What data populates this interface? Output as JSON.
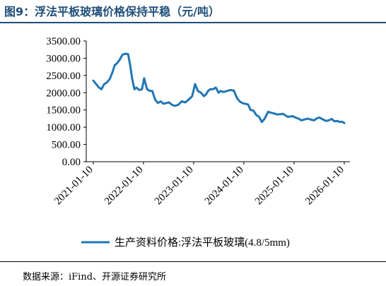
{
  "title": "图9：浮法平板玻璃价格保持平稳（元/吨）",
  "source": "数据来源：iFind、开源证券研究所",
  "colors": {
    "line": "#1f77b4",
    "title": "#1f4e79"
  },
  "chart_data": {
    "type": "line",
    "title": "图9：浮法平板玻璃价格保持平稳（元/吨）",
    "xlabel": "",
    "ylabel": "",
    "ylim": [
      0,
      3500
    ],
    "yticks": [
      "0.00",
      "500.00",
      "1000.00",
      "1500.00",
      "2000.00",
      "2500.00",
      "3000.00",
      "3500.00"
    ],
    "xticks": [
      "2021-01-10",
      "2022-01-10",
      "2023-01-10",
      "2024-01-10",
      "2025-01-10",
      "2026-01-10"
    ],
    "grid": false,
    "legend_position": "bottom",
    "series": [
      {
        "name": "生产资料价格:浮法平板玻璃(4.8/5mm)",
        "x": [
          "2021-01-10",
          "2021-02-20",
          "2021-03-10",
          "2021-03-30",
          "2021-04-20",
          "2021-05-10",
          "2021-05-30",
          "2021-06-15",
          "2021-07-01",
          "2021-07-20",
          "2021-08-10",
          "2021-08-30",
          "2021-09-20",
          "2021-10-05",
          "2021-10-20",
          "2021-11-05",
          "2021-11-20",
          "2021-12-10",
          "2021-12-30",
          "2022-01-15",
          "2022-02-05",
          "2022-02-25",
          "2022-03-15",
          "2022-04-05",
          "2022-04-25",
          "2022-05-15",
          "2022-06-05",
          "2022-06-25",
          "2022-07-15",
          "2022-08-05",
          "2022-08-25",
          "2022-09-20",
          "2022-10-15",
          "2022-11-10",
          "2022-12-05",
          "2022-12-30",
          "2023-01-20",
          "2023-02-10",
          "2023-03-05",
          "2023-03-25",
          "2023-04-10",
          "2023-04-25",
          "2023-05-10",
          "2023-05-30",
          "2023-06-20",
          "2023-07-10",
          "2023-07-25",
          "2023-08-15",
          "2023-09-10",
          "2023-10-05",
          "2023-10-30",
          "2023-11-20",
          "2023-12-10",
          "2023-12-30",
          "2024-01-20",
          "2024-02-10",
          "2024-02-28",
          "2024-03-20",
          "2024-04-10",
          "2024-04-30",
          "2024-05-20",
          "2024-06-10",
          "2024-07-05",
          "2024-07-25",
          "2024-08-15",
          "2024-09-10",
          "2024-10-05",
          "2024-10-20",
          "2024-11-05",
          "2024-11-25",
          "2024-12-10",
          "2024-12-30",
          "2025-01-20",
          "2025-02-10",
          "2025-03-05",
          "2025-03-30",
          "2025-04-20",
          "2025-05-10",
          "2025-06-05",
          "2025-06-25",
          "2025-07-15",
          "2025-08-05",
          "2025-08-30",
          "2025-09-20",
          "2025-10-10",
          "2025-10-30",
          "2025-11-20",
          "2025-12-10",
          "2025-12-25",
          "2026-01-10"
        ],
        "values": [
          2350,
          2150,
          2100,
          2250,
          2300,
          2400,
          2600,
          2800,
          2850,
          2950,
          3100,
          3130,
          3120,
          2800,
          2400,
          2100,
          2150,
          2080,
          2100,
          2420,
          2100,
          2050,
          2050,
          1800,
          1700,
          1750,
          1680,
          1700,
          1720,
          1650,
          1620,
          1650,
          1750,
          1720,
          1800,
          1900,
          2250,
          2050,
          2000,
          1900,
          1950,
          2050,
          2100,
          2100,
          2150,
          2000,
          2050,
          2020,
          2050,
          2080,
          2060,
          1850,
          1750,
          1700,
          1680,
          1660,
          1500,
          1480,
          1350,
          1300,
          1150,
          1250,
          1450,
          1420,
          1400,
          1370,
          1380,
          1390,
          1350,
          1300,
          1310,
          1320,
          1280,
          1250,
          1200,
          1230,
          1250,
          1220,
          1200,
          1260,
          1280,
          1230,
          1180,
          1200,
          1240,
          1170,
          1180,
          1150,
          1160,
          1120
        ]
      }
    ]
  }
}
